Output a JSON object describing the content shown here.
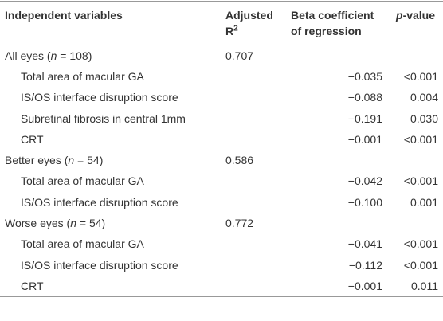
{
  "table": {
    "header": [
      {
        "text": "Independent variables"
      },
      {
        "text": "Adjusted R",
        "sup": "2"
      },
      {
        "text": "Beta coefficient of regression"
      },
      {
        "italic": "p",
        "text": "-value"
      }
    ],
    "groups": [
      {
        "label": [
          "All eyes (",
          "n",
          " = 108)"
        ],
        "adjusted_r2": "0.707",
        "rows": [
          {
            "variable": "Total area of macular GA",
            "beta": "−0.035",
            "p_value": "<0.001"
          },
          {
            "variable": "IS/OS interface disruption score",
            "beta": "−0.088",
            "p_value": "0.004"
          },
          {
            "variable": "Subretinal fibrosis in central 1mm",
            "beta": "−0.191",
            "p_value": "0.030"
          },
          {
            "variable": "CRT",
            "beta": "−0.001",
            "p_value": "<0.001"
          }
        ]
      },
      {
        "label": [
          "Better eyes (",
          "n",
          " = 54)"
        ],
        "adjusted_r2": "0.586",
        "rows": [
          {
            "variable": "Total area of macular GA",
            "beta": "−0.042",
            "p_value": "<0.001"
          },
          {
            "variable": "IS/OS interface disruption score",
            "beta": "−0.100",
            "p_value": "0.001"
          }
        ]
      },
      {
        "label": [
          "Worse eyes (",
          "n",
          " = 54)"
        ],
        "adjusted_r2": "0.772",
        "rows": [
          {
            "variable": "Total area of macular GA",
            "beta": "−0.041",
            "p_value": "<0.001"
          },
          {
            "variable": "IS/OS interface disruption score",
            "beta": "−0.112",
            "p_value": "<0.001"
          },
          {
            "variable": "CRT",
            "beta": "−0.001",
            "p_value": "0.011"
          }
        ]
      }
    ]
  }
}
